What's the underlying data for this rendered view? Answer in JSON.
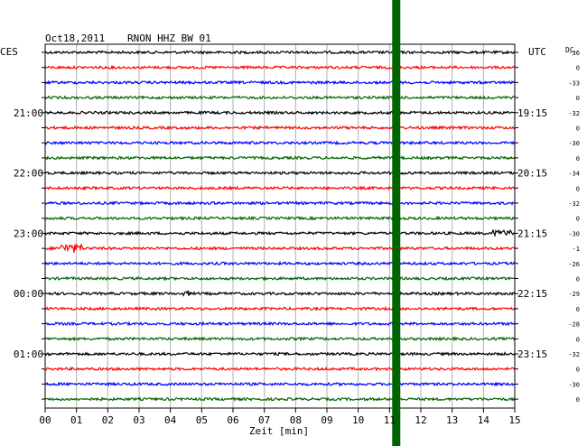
{
  "header": {
    "date": "Oct18,2011",
    "station": "RNON HHZ BW 01",
    "left_tz": "CES",
    "right_tz": "UTC",
    "dc_label": "DC"
  },
  "chart_data": {
    "type": "helicorder",
    "title": "Oct18,2011   RNON HHZ BW 01",
    "xlabel": "Zeit [min]",
    "x_ticks": [
      "00",
      "01",
      "02",
      "03",
      "04",
      "05",
      "06",
      "07",
      "08",
      "09",
      "10",
      "11",
      "12",
      "13",
      "14",
      "15"
    ],
    "xlim": [
      0,
      15
    ],
    "line_colors": [
      "#000000",
      "#ff0000",
      "#0000ff",
      "#006400"
    ],
    "left_hour_labels": [
      {
        "row": 4,
        "label": "21:00"
      },
      {
        "row": 8,
        "label": "22:00"
      },
      {
        "row": 12,
        "label": "23:00"
      },
      {
        "row": 16,
        "label": "00:00"
      },
      {
        "row": 20,
        "label": "01:00"
      }
    ],
    "right_hour_labels": [
      {
        "row": 4,
        "label": "19:15"
      },
      {
        "row": 8,
        "label": "20:15"
      },
      {
        "row": 12,
        "label": "21:15"
      },
      {
        "row": 16,
        "label": "22:15"
      },
      {
        "row": 20,
        "label": "23:15"
      }
    ],
    "dc_offsets": [
      "-36",
      "0",
      "-33",
      "0",
      "-32",
      "0",
      "-30",
      "0",
      "-34",
      "0",
      "-32",
      "0",
      "-30",
      "-1",
      "-26",
      "0",
      "-29",
      "0",
      "-28",
      "0",
      "-32",
      "0",
      "-30",
      "0"
    ],
    "current_time_marker_min": 11.2,
    "current_time_marker_color": "#006400",
    "events": [
      {
        "row": 13,
        "start_min": 0.5,
        "end_min": 1.2,
        "amplitude": "high"
      },
      {
        "row": 12,
        "start_min": 14.3,
        "end_min": 14.9,
        "amplitude": "medium"
      },
      {
        "row": 16,
        "start_min": 4.4,
        "end_min": 4.6,
        "amplitude": "small"
      }
    ]
  }
}
